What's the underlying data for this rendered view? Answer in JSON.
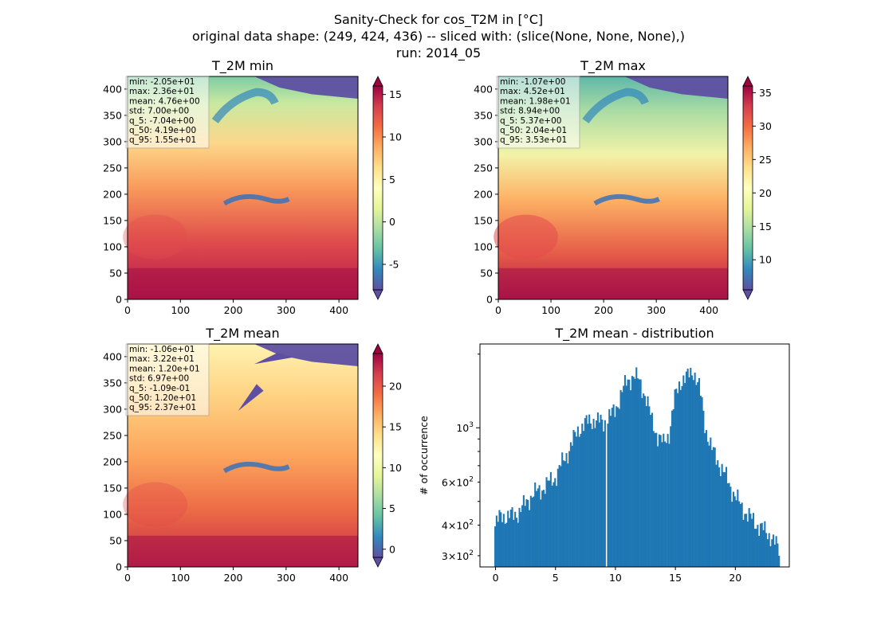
{
  "figure": {
    "suptitle_lines": [
      "Sanity-Check for cos_T2M in [°C]",
      "original data shape: (249, 424, 436) -- sliced with: (slice(None, None, None),)",
      "run: 2014_05"
    ]
  },
  "chart_data": [
    {
      "type": "heatmap",
      "title": "T_2M min",
      "xlim": [
        0,
        436
      ],
      "ylim": [
        0,
        424
      ],
      "xticks": [
        0,
        100,
        200,
        300,
        400
      ],
      "yticks": [
        0,
        50,
        100,
        150,
        200,
        250,
        300,
        350,
        400
      ],
      "colormap": "Spectral_r",
      "colorbar": {
        "vmin": -8,
        "vmax": 16,
        "ticks": [
          -5,
          0,
          5,
          10,
          15
        ],
        "extend": "both"
      },
      "stats": [
        "min: -2.05e+01",
        "max: 2.36e+01",
        "mean: 4.76e+00",
        "std: 7.00e+00",
        "q_5: -7.04e+00",
        "q_50: 4.19e+00",
        "q_95: 1.55e+01"
      ]
    },
    {
      "type": "heatmap",
      "title": "T_2M max",
      "xlim": [
        0,
        436
      ],
      "ylim": [
        0,
        424
      ],
      "xticks": [
        0,
        100,
        200,
        300,
        400
      ],
      "yticks": [
        0,
        50,
        100,
        150,
        200,
        250,
        300,
        350,
        400
      ],
      "colormap": "Spectral_r",
      "colorbar": {
        "vmin": 5.5,
        "vmax": 36,
        "ticks": [
          10,
          15,
          20,
          25,
          30,
          35
        ],
        "extend": "both"
      },
      "stats": [
        "min: -1.07e+00",
        "max: 4.52e+01",
        "mean: 1.98e+01",
        "std: 8.94e+00",
        "q_5: 5.37e+00",
        "q_50: 2.04e+01",
        "q_95: 3.53e+01"
      ]
    },
    {
      "type": "heatmap",
      "title": "T_2M mean",
      "xlim": [
        0,
        436
      ],
      "ylim": [
        0,
        424
      ],
      "xticks": [
        0,
        100,
        200,
        300,
        400
      ],
      "yticks": [
        0,
        50,
        100,
        150,
        200,
        250,
        300,
        350,
        400
      ],
      "colormap": "Spectral_r",
      "colorbar": {
        "vmin": -1,
        "vmax": 24,
        "ticks": [
          0,
          5,
          10,
          15,
          20
        ],
        "extend": "both"
      },
      "stats": [
        "min: -1.06e+01",
        "max: 3.22e+01",
        "mean: 1.20e+01",
        "std: 6.97e+00",
        "q_5: -1.09e-01",
        "q_50: 1.20e+01",
        "q_95: 2.37e+01"
      ]
    },
    {
      "type": "bar",
      "title": "T_2M mean - distribution",
      "xlabel": "",
      "ylabel": "# of occurrence",
      "xlim": [
        -1.3,
        24.5
      ],
      "ylim": [
        270,
        2200
      ],
      "yscale": "log",
      "xticks": [
        0,
        5,
        10,
        15,
        20
      ],
      "yticks_major": [
        1000
      ],
      "yticks_major_labels": [
        "10^3"
      ],
      "yticks_minor": [
        300,
        400,
        600
      ],
      "yticks_minor_labels": [
        "3×10^2",
        "4×10^2",
        "6×10^2"
      ],
      "bar_color": "#1f77b4",
      "bin_range": [
        -0.1,
        23.7
      ],
      "knots": [
        {
          "x": -0.1,
          "y": 390
        },
        {
          "x": 0.5,
          "y": 445
        },
        {
          "x": 1,
          "y": 430
        },
        {
          "x": 2,
          "y": 455
        },
        {
          "x": 3,
          "y": 530
        },
        {
          "x": 4,
          "y": 570
        },
        {
          "x": 5,
          "y": 630
        },
        {
          "x": 6,
          "y": 790
        },
        {
          "x": 7,
          "y": 1000
        },
        {
          "x": 8,
          "y": 1080
        },
        {
          "x": 9,
          "y": 1050
        },
        {
          "x": 10,
          "y": 1180
        },
        {
          "x": 10.5,
          "y": 1400
        },
        {
          "x": 11,
          "y": 1550
        },
        {
          "x": 11.5,
          "y": 1640
        },
        {
          "x": 12,
          "y": 1550
        },
        {
          "x": 12.5,
          "y": 1350
        },
        {
          "x": 13,
          "y": 1080
        },
        {
          "x": 13.5,
          "y": 930
        },
        {
          "x": 14,
          "y": 860
        },
        {
          "x": 14.5,
          "y": 960
        },
        {
          "x": 15,
          "y": 1350
        },
        {
          "x": 15.5,
          "y": 1580
        },
        {
          "x": 16,
          "y": 1610
        },
        {
          "x": 16.5,
          "y": 1720
        },
        {
          "x": 17,
          "y": 1450
        },
        {
          "x": 17.5,
          "y": 1000
        },
        {
          "x": 18,
          "y": 820
        },
        {
          "x": 19,
          "y": 660
        },
        {
          "x": 20,
          "y": 520
        },
        {
          "x": 21,
          "y": 440
        },
        {
          "x": 22,
          "y": 395
        },
        {
          "x": 23,
          "y": 360
        },
        {
          "x": 23.7,
          "y": 310
        }
      ]
    }
  ]
}
